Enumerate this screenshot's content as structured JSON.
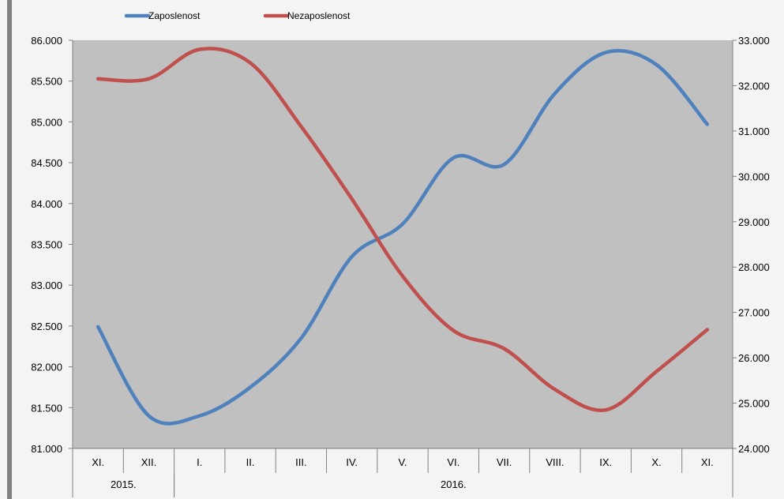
{
  "chart_data": {
    "type": "line",
    "categories": [
      "XI.",
      "XII.",
      "I.",
      "II.",
      "III.",
      "IV.",
      "V.",
      "VI.",
      "VII.",
      "VIII.",
      "IX.",
      "X.",
      "XI."
    ],
    "year_groups": [
      {
        "label": "2015.",
        "span": [
          0,
          1
        ]
      },
      {
        "label": "2016.",
        "span": [
          2,
          12
        ]
      }
    ],
    "series": [
      {
        "name": "Zaposlenost",
        "axis": "left",
        "color": "#4f81bd",
        "values": [
          82490,
          81400,
          81400,
          81750,
          82350,
          83350,
          83750,
          84560,
          84480,
          85350,
          85850,
          85700,
          84970
        ]
      },
      {
        "name": "Nezaposlenost",
        "axis": "right",
        "color": "#c0504d",
        "values": [
          32150,
          32150,
          32800,
          32500,
          31100,
          29500,
          27800,
          26600,
          26200,
          25300,
          24850,
          25700,
          26620
        ]
      }
    ],
    "y_left": {
      "min": 81000,
      "max": 86000,
      "step": 500,
      "tick_labels": [
        "81.000",
        "81.500",
        "82.000",
        "82.500",
        "83.000",
        "83.500",
        "84.000",
        "84.500",
        "85.000",
        "85.500",
        "86.000"
      ]
    },
    "y_right": {
      "min": 24000,
      "max": 33000,
      "step": 1000,
      "tick_labels": [
        "24.000",
        "25.000",
        "26.000",
        "27.000",
        "28.000",
        "29.000",
        "30.000",
        "31.000",
        "32.000",
        "33.000"
      ]
    },
    "legend_position": "top-left",
    "plot_background": "#c0c0c0",
    "grid": false
  }
}
